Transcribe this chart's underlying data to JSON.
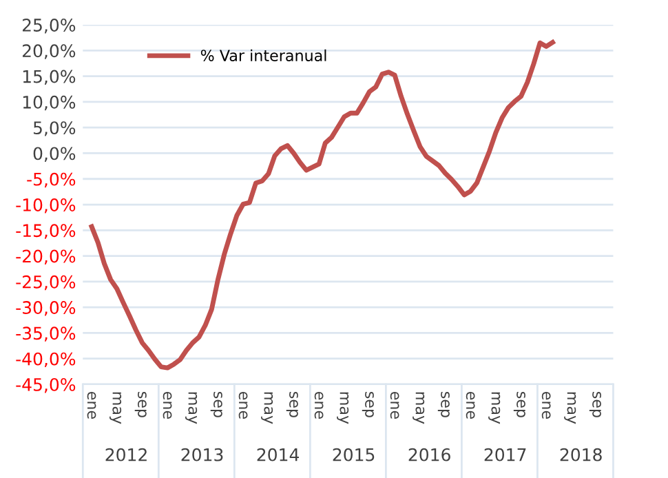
{
  "chart_data": {
    "type": "line",
    "categories": [
      "ene",
      null,
      null,
      null,
      "may",
      null,
      null,
      null,
      "sep",
      null,
      null,
      null,
      "ene",
      null,
      null,
      null,
      "may",
      null,
      null,
      null,
      "sep",
      null,
      null,
      null,
      "ene",
      null,
      null,
      null,
      "may",
      null,
      null,
      null,
      "sep",
      null,
      null,
      null,
      "ene",
      null,
      null,
      null,
      "may",
      null,
      null,
      null,
      "sep",
      null,
      null,
      null,
      "ene",
      null,
      null,
      null,
      "may",
      null,
      null,
      null,
      "sep",
      null,
      null,
      null,
      "ene",
      null,
      null,
      null,
      "may",
      null,
      null,
      null,
      "sep",
      null,
      null,
      null,
      "ene",
      null,
      null,
      null,
      "may",
      null,
      null,
      null,
      "sep",
      null,
      null,
      null
    ],
    "series": [
      {
        "name": "% Var interanual",
        "color": "#c0504d",
        "values": [
          -14.3,
          -17.4,
          -21.5,
          -24.6,
          -26.4,
          -29.1,
          -31.7,
          -34.4,
          -36.9,
          -38.4,
          -40.1,
          -41.6,
          -41.8,
          -41.1,
          -40.2,
          -38.4,
          -36.9,
          -35.8,
          -33.5,
          -30.4,
          -24.6,
          -19.7,
          -15.7,
          -12.1,
          -9.9,
          -9.6,
          -5.8,
          -5.4,
          -4.0,
          -0.5,
          0.9,
          1.5,
          0.0,
          -1.8,
          -3.3,
          -2.7,
          -2.1,
          2.0,
          3.1,
          5.1,
          7.1,
          7.8,
          7.8,
          9.8,
          12.0,
          12.9,
          15.4,
          15.8,
          15.2,
          11.1,
          7.6,
          4.4,
          1.3,
          -0.6,
          -1.5,
          -2.4,
          -3.9,
          -5.1,
          -6.5,
          -8.1,
          -7.4,
          -5.8,
          -2.7,
          0.4,
          4.0,
          6.9,
          8.9,
          10.1,
          11.1,
          13.8,
          17.4,
          21.5,
          20.8,
          21.6,
          null,
          null,
          null,
          null,
          null,
          null,
          null,
          null,
          null,
          null
        ]
      }
    ],
    "ylim": [
      -45,
      25
    ],
    "yticks": [
      {
        "value": -45,
        "label": "-45,0%"
      },
      {
        "value": -40,
        "label": "-40,0%"
      },
      {
        "value": -35,
        "label": "-35,0%"
      },
      {
        "value": -30,
        "label": "-30,0%"
      },
      {
        "value": -25,
        "label": "-25,0%"
      },
      {
        "value": -20,
        "label": "-20,0%"
      },
      {
        "value": -15,
        "label": "-15,0%"
      },
      {
        "value": -10,
        "label": "-10,0%"
      },
      {
        "value": -5,
        "label": "-5,0%"
      },
      {
        "value": 0,
        "label": "0,0%"
      },
      {
        "value": 5,
        "label": "5,0%"
      },
      {
        "value": 10,
        "label": "10,0%"
      },
      {
        "value": 15,
        "label": "15,0%"
      },
      {
        "value": 20,
        "label": "20,0%"
      },
      {
        "value": 25,
        "label": "25,0%"
      }
    ],
    "annotations": [
      "2012",
      "2013",
      "2014",
      "2015",
      "2016",
      "2017",
      "2018"
    ],
    "grid": "y",
    "legend": "top left",
    "marker": "none",
    "line_style": "solid"
  }
}
